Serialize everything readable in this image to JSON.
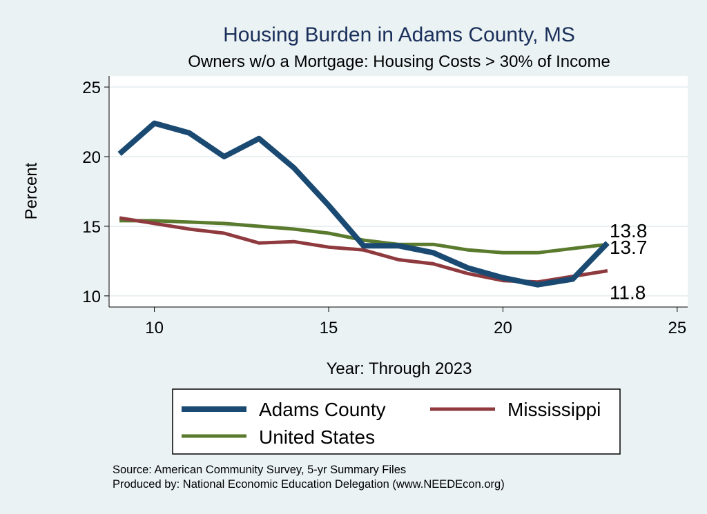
{
  "chart_data": {
    "type": "line",
    "title": "Housing Burden in Adams County, MS",
    "subtitle": "Owners w/o a Mortgage: Housing Costs > 30% of Income",
    "xlabel": "Year: Through 2023",
    "ylabel": "Percent",
    "xlim": [
      8.7,
      25.3
    ],
    "ylim": [
      9.2,
      25.8
    ],
    "xticks": [
      10,
      15,
      20,
      25
    ],
    "yticks": [
      10,
      15,
      20,
      25
    ],
    "grid": true,
    "legend_position": "bottom",
    "series": [
      {
        "name": "Adams County",
        "color": "#1a4a72",
        "x": [
          9,
          10,
          11,
          12,
          13,
          14,
          15,
          16,
          17,
          18,
          19,
          20,
          21,
          22,
          23
        ],
        "values": [
          20.2,
          22.4,
          21.7,
          20.0,
          21.3,
          19.2,
          16.5,
          13.6,
          13.6,
          13.1,
          12.0,
          11.3,
          10.8,
          11.2,
          13.8
        ],
        "end_label": "13.8"
      },
      {
        "name": "Mississippi",
        "color": "#8f3a3e",
        "x": [
          9,
          10,
          11,
          12,
          13,
          14,
          15,
          16,
          17,
          18,
          19,
          20,
          21,
          22,
          23
        ],
        "values": [
          15.6,
          15.2,
          14.8,
          14.5,
          13.8,
          13.9,
          13.5,
          13.3,
          12.6,
          12.3,
          11.6,
          11.1,
          11.0,
          11.4,
          11.8
        ],
        "end_label": "11.8"
      },
      {
        "name": "United States",
        "color": "#5a7a2e",
        "x": [
          9,
          10,
          11,
          12,
          13,
          14,
          15,
          16,
          17,
          18,
          19,
          20,
          21,
          22,
          23
        ],
        "values": [
          15.4,
          15.4,
          15.3,
          15.2,
          15.0,
          14.8,
          14.5,
          14.0,
          13.7,
          13.7,
          13.3,
          13.1,
          13.1,
          13.4,
          13.7
        ],
        "end_label": "13.7"
      }
    ],
    "source_lines": [
      "Source: American Community Survey, 5-yr Summary Files",
      "Produced by: National Economic Education Delegation (www.NEEDEcon.org)"
    ]
  }
}
